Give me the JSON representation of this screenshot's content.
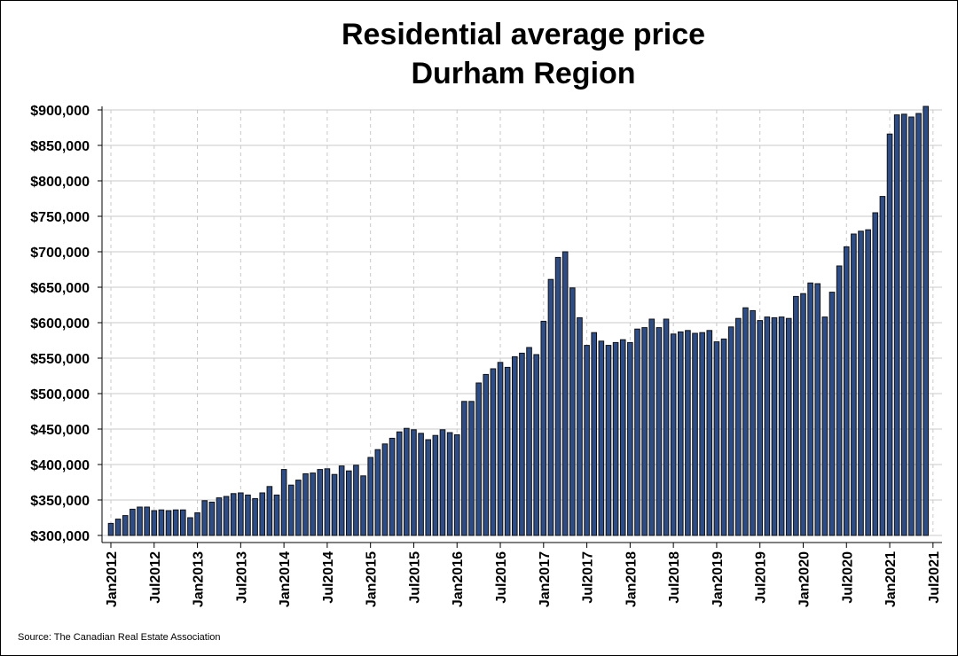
{
  "chart_data": {
    "type": "bar",
    "title": [
      "Residential average price",
      "Durham Region"
    ],
    "source": "Source: The Canadian Real Estate Association",
    "categories": [
      "Jan2012",
      null,
      null,
      null,
      null,
      null,
      "Jul2012",
      null,
      null,
      null,
      null,
      null,
      "Jan2013",
      null,
      null,
      null,
      null,
      null,
      "Jul2013",
      null,
      null,
      null,
      null,
      null,
      "Jan2014",
      null,
      null,
      null,
      null,
      null,
      "Jul2014",
      null,
      null,
      null,
      null,
      null,
      "Jan2015",
      null,
      null,
      null,
      null,
      null,
      "Jul2015",
      null,
      null,
      null,
      null,
      null,
      "Jan2016",
      null,
      null,
      null,
      null,
      null,
      "Jul2016",
      null,
      null,
      null,
      null,
      null,
      "Jan2017",
      null,
      null,
      null,
      null,
      null,
      "Jul2017",
      null,
      null,
      null,
      null,
      null,
      "Jan2018",
      null,
      null,
      null,
      null,
      null,
      "Jul2018",
      null,
      null,
      null,
      null,
      null,
      "Jan2019",
      null,
      null,
      null,
      null,
      null,
      "Jul2019",
      null,
      null,
      null,
      null,
      null,
      "Jan2020",
      null,
      null,
      null,
      null,
      null,
      "Jul2020",
      null,
      null,
      null,
      null,
      null,
      "Jan2021",
      null,
      null,
      null,
      null,
      null,
      "Jul2021"
    ],
    "values": [
      317000,
      323000,
      328000,
      337000,
      340000,
      340000,
      335000,
      336000,
      335000,
      336000,
      336000,
      325000,
      332000,
      349000,
      347000,
      353000,
      355000,
      359000,
      360000,
      357000,
      352000,
      360000,
      369000,
      357000,
      393000,
      371000,
      378000,
      387000,
      388000,
      393000,
      394000,
      386000,
      398000,
      391000,
      399000,
      384000,
      410000,
      421000,
      429000,
      437000,
      446000,
      451000,
      449000,
      444000,
      435000,
      441000,
      449000,
      445000,
      442000,
      489000,
      489000,
      515000,
      527000,
      535000,
      544000,
      537000,
      552000,
      557000,
      565000,
      555000,
      602000,
      661000,
      692000,
      700000,
      649000,
      607000,
      568000,
      586000,
      574000,
      568000,
      572000,
      576000,
      572000,
      591000,
      593000,
      605000,
      593000,
      605000,
      584000,
      587000,
      589000,
      585000,
      586000,
      589000,
      573000,
      577000,
      594000,
      606000,
      621000,
      617000,
      603000,
      608000,
      607000,
      608000,
      606000,
      637000,
      641000,
      656000,
      655000,
      608000,
      643000,
      680000,
      707000,
      725000,
      729000,
      731000,
      755000,
      778000,
      866000,
      893000,
      894000,
      890000,
      895000,
      905000,
      null
    ],
    "color": "#2e4d86",
    "ylim": [
      300000,
      900000
    ],
    "yticks": [
      {
        "value": 300000,
        "label": "$300,000"
      },
      {
        "value": 350000,
        "label": "$350,000"
      },
      {
        "value": 400000,
        "label": "$400,000"
      },
      {
        "value": 450000,
        "label": "$450,000"
      },
      {
        "value": 500000,
        "label": "$500,000"
      },
      {
        "value": 550000,
        "label": "$550,000"
      },
      {
        "value": 600000,
        "label": "$600,000"
      },
      {
        "value": 650000,
        "label": "$650,000"
      },
      {
        "value": 700000,
        "label": "$700,000"
      },
      {
        "value": 750000,
        "label": "$750,000"
      },
      {
        "value": 800000,
        "label": "$800,000"
      },
      {
        "value": 850000,
        "label": "$850,000"
      },
      {
        "value": 900000,
        "label": "$900,000"
      }
    ],
    "grid": true
  }
}
